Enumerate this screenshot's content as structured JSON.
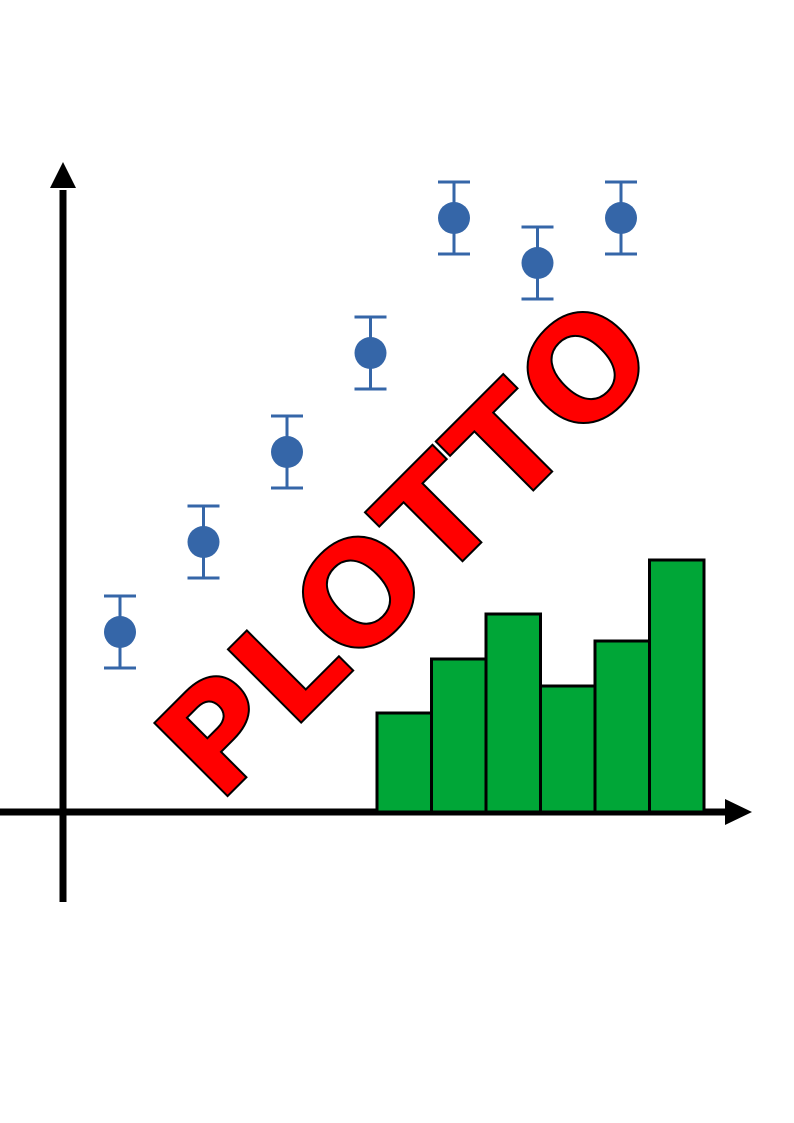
{
  "logo": {
    "text": "PLOTTO",
    "text_color": "#ff0000",
    "outline_color": "#000000"
  },
  "colors": {
    "background": "#ffffff",
    "axis": "#000000",
    "markers": "#3566a8",
    "bars": "#00a637",
    "bar_outline": "#000000"
  },
  "chart_data": [
    {
      "type": "scatter",
      "x": [
        1,
        2,
        3,
        4,
        5,
        6,
        7
      ],
      "y": [
        2.0,
        3.0,
        4.0,
        5.1,
        6.6,
        6.1,
        6.6
      ],
      "yerr": [
        0.4,
        0.4,
        0.4,
        0.4,
        0.4,
        0.4,
        0.4
      ]
    },
    {
      "type": "bar",
      "values": [
        1.1,
        1.7,
        2.2,
        1.4,
        1.9,
        2.8
      ]
    }
  ]
}
